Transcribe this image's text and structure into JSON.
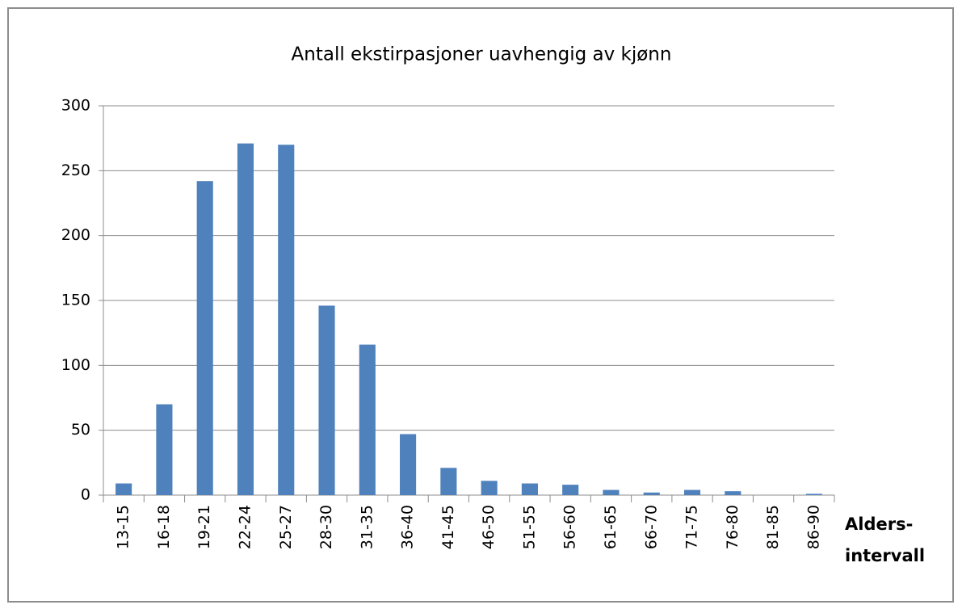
{
  "chart_data": {
    "type": "bar",
    "title": "Antall ekstirpasjoner uavhengig av kjønn",
    "x_label": [
      "Alders-",
      "intervall"
    ],
    "categories": [
      "13-15",
      "16-18",
      "19-21",
      "22-24",
      "25-27",
      "28-30",
      "31-35",
      "36-40",
      "41-45",
      "46-50",
      "51-55",
      "56-60",
      "61-65",
      "66-70",
      "71-75",
      "76-80",
      "81-85",
      "86-90"
    ],
    "values": [
      9,
      70,
      242,
      271,
      270,
      146,
      116,
      47,
      21,
      11,
      9,
      8,
      4,
      2,
      4,
      3,
      0,
      1
    ],
    "color": "#4f81bd",
    "ylim": [
      0,
      300
    ],
    "yticks": [
      0,
      50,
      100,
      150,
      200,
      250,
      300
    ],
    "grid": true
  }
}
